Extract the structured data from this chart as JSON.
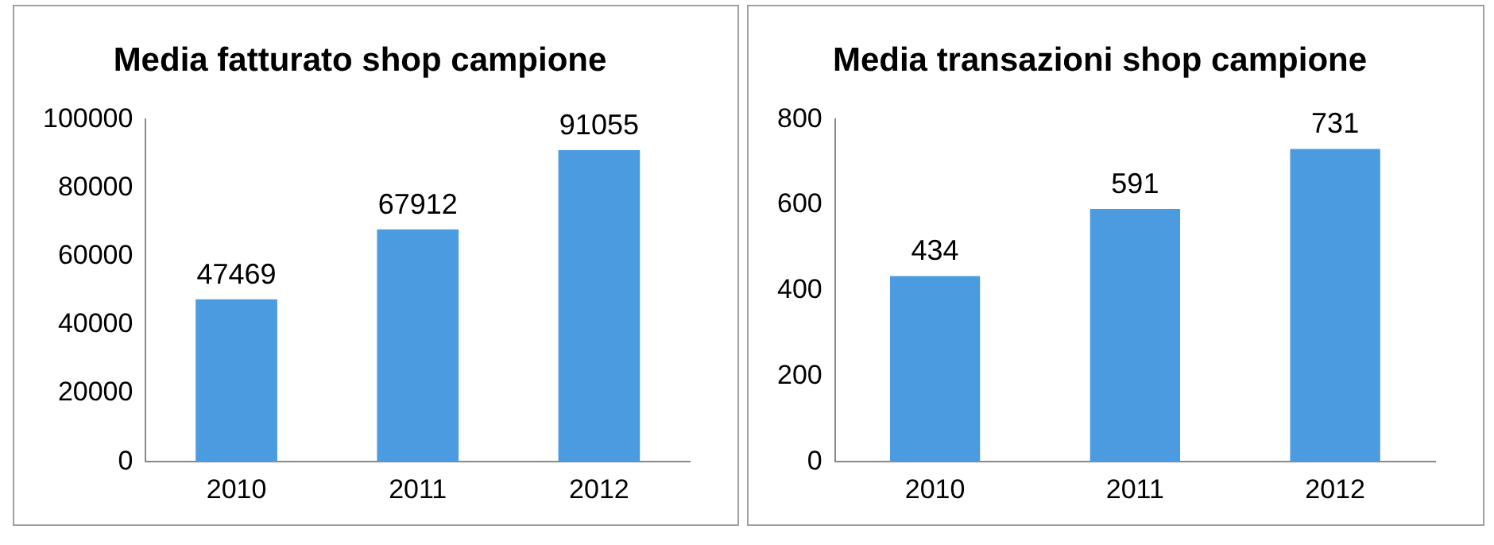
{
  "chart_data": [
    {
      "type": "bar",
      "title": "Media fatturato shop campione",
      "categories": [
        "2010",
        "2011",
        "2012"
      ],
      "values": [
        47469,
        67912,
        91055
      ],
      "color": "#4a9be0",
      "ylim": [
        0,
        100000
      ],
      "yticks": [
        0,
        20000,
        40000,
        60000,
        80000,
        100000
      ],
      "grid": false,
      "data_labels": true
    },
    {
      "type": "bar",
      "title": "Media transazioni shop campione",
      "categories": [
        "2010",
        "2011",
        "2012"
      ],
      "values": [
        434,
        591,
        731
      ],
      "color": "#4a9be0",
      "ylim": [
        0,
        800
      ],
      "yticks": [
        0,
        200,
        400,
        600,
        800
      ],
      "grid": false,
      "data_labels": true
    }
  ]
}
